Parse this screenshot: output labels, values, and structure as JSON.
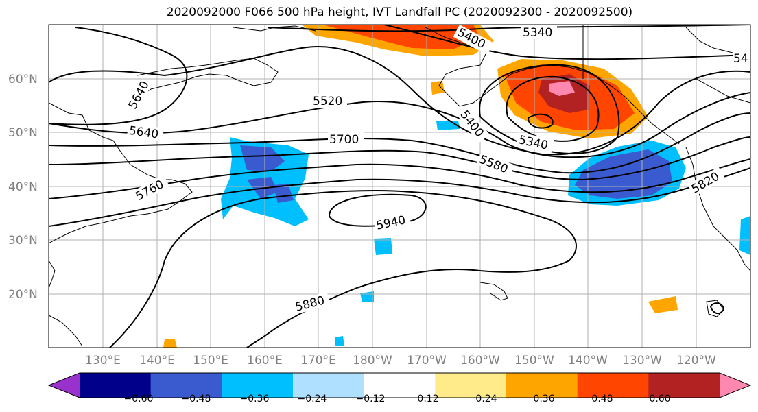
{
  "title": "2020092000 F066 500 hPa height, IVT Landfall PC (2020092300 - 2020092500)",
  "lat_labels": [
    "60°N",
    "50°N",
    "40°N",
    "30°N",
    "20°N"
  ],
  "lon_labels": [
    "130°E",
    "140°E",
    "150°E",
    "160°E",
    "170°E",
    "180°W",
    "170°W",
    "160°W",
    "150°W",
    "140°W",
    "130°W",
    "120°W"
  ],
  "contour_labels": [
    "5340",
    "5400",
    "54",
    "5520",
    "5640",
    "5700",
    "5400",
    "5340",
    "5580",
    "5760",
    "5820",
    "5940",
    "5880",
    "5640"
  ],
  "colorbar": {
    "tick_labels": [
      "−0.60",
      "−0.48",
      "−0.36",
      "−0.24",
      "−0.12",
      "0.12",
      "0.24",
      "0.36",
      "0.48",
      "0.60"
    ],
    "colors": [
      "#9932CC",
      "#00008B",
      "#3A5BCF",
      "#00BFFF",
      "#B0E0FF",
      "#FFFFFF",
      "#FFEB8A",
      "#FFA500",
      "#FF4500",
      "#B22222",
      "#FF88B0"
    ]
  }
}
